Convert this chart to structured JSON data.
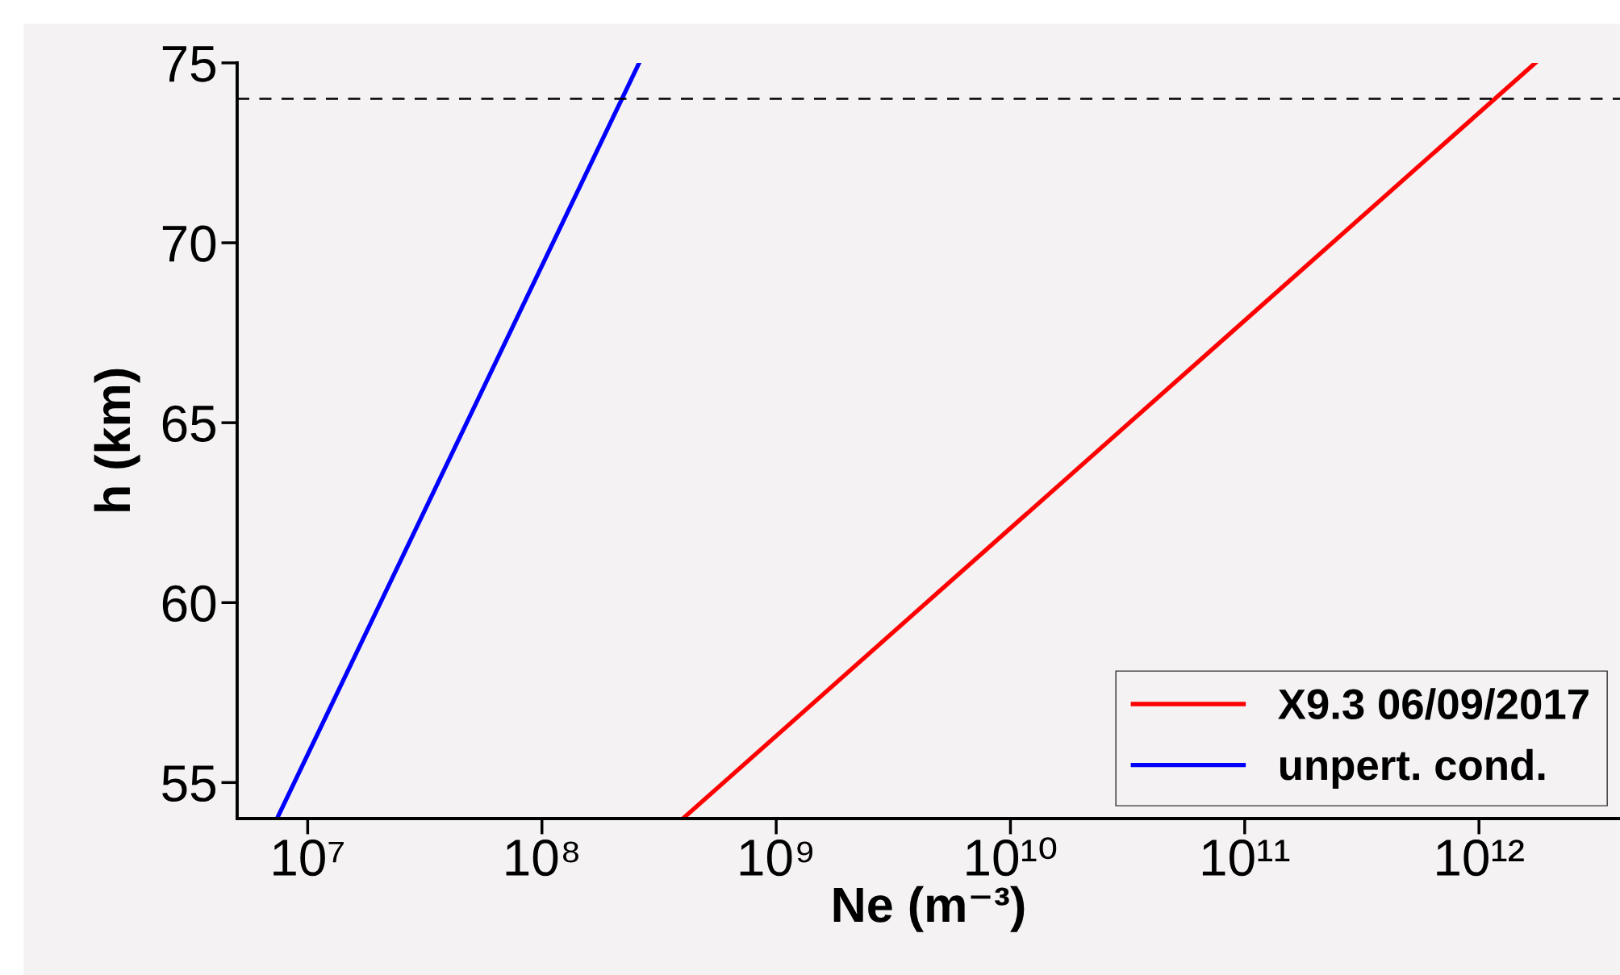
{
  "chart_data": {
    "type": "line",
    "xlabel": "Ne (m⁻³)",
    "ylabel": "h (km)",
    "log": "x",
    "xlim": [
      5000000.0,
      4000000000000.0
    ],
    "ylim": [
      54,
      75
    ],
    "xticks": [
      {
        "value": 10000000.0,
        "label": "10⁷"
      },
      {
        "value": 100000000.0,
        "label": "10⁸"
      },
      {
        "value": 1000000000.0,
        "label": "10⁹"
      },
      {
        "value": 10000000000.0,
        "label": "10¹⁰"
      },
      {
        "value": 100000000000.0,
        "label": "10¹¹"
      },
      {
        "value": 1000000000000.0,
        "label": "10¹²"
      }
    ],
    "yticks": [
      55,
      60,
      65,
      70,
      75
    ],
    "series": [
      {
        "name": "X9.3 06/09/2017",
        "color": "#ff0000",
        "x": [
          400000000.0,
          1740000000000.0
        ],
        "values": [
          54,
          75
        ]
      },
      {
        "name": "unpert. cond.",
        "color": "#0000ff",
        "x": [
          7400000.0,
          260000000.0
        ],
        "values": [
          54,
          75
        ]
      }
    ],
    "ref_lines": [
      {
        "axis": "y",
        "value": 74,
        "color": "#000000",
        "line_style": "dashed"
      }
    ],
    "legend": "bottom right",
    "grid": false,
    "line_style": "solid",
    "marker": "none"
  }
}
